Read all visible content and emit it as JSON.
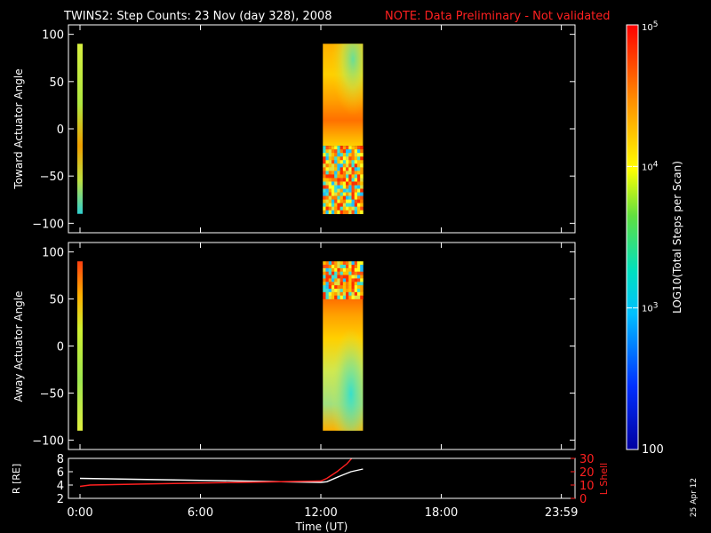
{
  "header": {
    "title": "TWINS2: Step Counts: 23 Nov (day 328), 2008",
    "note": "NOTE: Data Preliminary - Not validated",
    "note_color": "#ff2020"
  },
  "footer": {
    "date_stamp": "25 Apr 12"
  },
  "colorbar": {
    "label": "LOG10(Total Steps per Scan)",
    "ticks": [
      {
        "value": 100,
        "label": "100"
      },
      {
        "value": 1000,
        "label": "10^3"
      },
      {
        "value": 10000,
        "label": "10^4"
      },
      {
        "value": 100000,
        "label": "10^5"
      }
    ],
    "range": [
      100,
      100000
    ],
    "scale": "log"
  },
  "chart_data": [
    {
      "type": "heatmap",
      "ylabel": "Toward Actuator Angle",
      "xlim": [
        0,
        24
      ],
      "ylim": [
        -110,
        110
      ],
      "yticks": [
        100,
        50,
        0,
        -50,
        -100
      ],
      "data_blocks": [
        {
          "t_start": 0.0,
          "t_end": 0.1,
          "angle_min": -90,
          "angle_max": 90,
          "pattern": "thin-strip-upper-green"
        },
        {
          "t_start": 12.1,
          "t_end": 14.1,
          "angle_min": -90,
          "angle_max": 90,
          "pattern": "upper-smooth-lower-noisy"
        }
      ]
    },
    {
      "type": "heatmap",
      "ylabel": "Away Actuator Angle",
      "xlim": [
        0,
        24
      ],
      "ylim": [
        -110,
        110
      ],
      "yticks": [
        100,
        50,
        0,
        -50,
        -100
      ],
      "data_blocks": [
        {
          "t_start": 0.0,
          "t_end": 0.1,
          "angle_min": -90,
          "angle_max": 90,
          "pattern": "thin-strip-lower-green"
        },
        {
          "t_start": 12.1,
          "t_end": 14.1,
          "angle_min": -90,
          "angle_max": 90,
          "pattern": "upper-noisy-lower-smooth"
        }
      ]
    },
    {
      "type": "line",
      "xlabel": "Time (UT)",
      "ylabel_left": "R [RE]",
      "ylabel_right": "L Shell",
      "xlim": [
        0,
        24
      ],
      "ylim_left": [
        2,
        8
      ],
      "ylim_right": [
        0,
        30
      ],
      "yticks_left": [
        8,
        6,
        4,
        2
      ],
      "yticks_right": [
        30,
        20,
        10,
        0
      ],
      "xticks": [
        {
          "value": 0,
          "label": "0:00"
        },
        {
          "value": 6,
          "label": "6:00"
        },
        {
          "value": 12,
          "label": "12:00"
        },
        {
          "value": 18,
          "label": "18:00"
        },
        {
          "value": 23.983,
          "label": "23:59"
        }
      ],
      "series": [
        {
          "name": "R [RE]",
          "axis": "left",
          "color": "#ffffff",
          "x": [
            0,
            4,
            8,
            12,
            12.3,
            13,
            13.5,
            14.1
          ],
          "y": [
            5.0,
            4.8,
            4.6,
            4.4,
            4.5,
            5.4,
            6.0,
            6.4
          ]
        },
        {
          "name": "L Shell",
          "axis": "right",
          "color": "#ff2020",
          "x": [
            0,
            0.5,
            4,
            8,
            12,
            12.3,
            12.8,
            13.3,
            13.6
          ],
          "y": [
            9,
            10,
            11,
            12,
            13,
            15,
            20,
            26,
            31
          ]
        }
      ]
    }
  ]
}
